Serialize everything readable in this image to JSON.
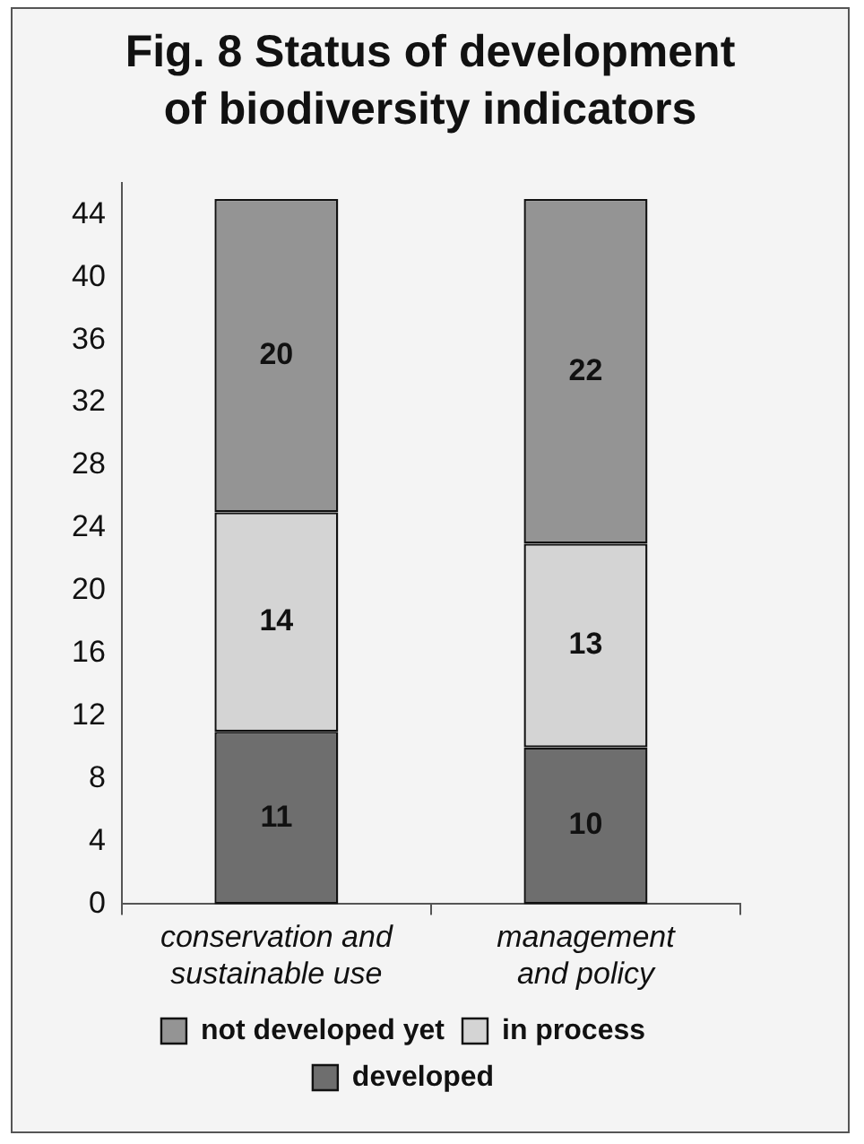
{
  "chart_data": {
    "type": "bar",
    "title": "Fig. 8 Status of development of biodiversity indicators",
    "categories": [
      "conservation and sustainable use",
      "management and policy"
    ],
    "stacked": true,
    "series": [
      {
        "name": "developed",
        "color": "#6e6e6e",
        "values": [
          11,
          10
        ]
      },
      {
        "name": "in process",
        "color": "#d4d4d4",
        "values": [
          14,
          13
        ]
      },
      {
        "name": "not developed yet",
        "color": "#949494",
        "values": [
          20,
          22
        ]
      }
    ],
    "ylim": [
      0,
      46
    ],
    "yticks": [
      0,
      4,
      8,
      12,
      16,
      20,
      24,
      28,
      32,
      36,
      40,
      44
    ],
    "data_labels": true,
    "legend": "bottom"
  }
}
